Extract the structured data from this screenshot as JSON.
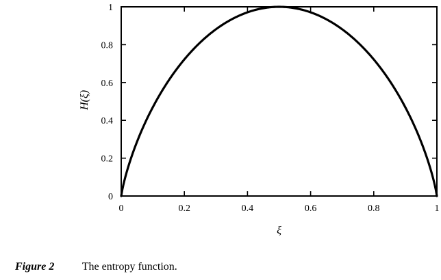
{
  "chart_data": {
    "type": "line",
    "xlabel": "ξ",
    "ylabel": "H(ξ)",
    "xlim": [
      0,
      1
    ],
    "ylim": [
      0,
      1
    ],
    "x_ticks": [
      "0",
      "0.2",
      "0.4",
      "0.6",
      "0.8",
      "1"
    ],
    "y_ticks": [
      "0",
      "0.2",
      "0.4",
      "0.6",
      "0.8",
      "1"
    ],
    "grid": false,
    "series": [
      {
        "x": [
          0,
          0.01,
          0.02,
          0.05,
          0.1,
          0.15,
          0.2,
          0.25,
          0.3,
          0.35,
          0.4,
          0.45,
          0.5,
          0.55,
          0.6,
          0.65,
          0.7,
          0.75,
          0.8,
          0.85,
          0.9,
          0.95,
          0.98,
          0.99,
          1
        ],
        "values": [
          0,
          0.081,
          0.141,
          0.286,
          0.469,
          0.61,
          0.722,
          0.811,
          0.881,
          0.934,
          0.971,
          0.993,
          1,
          0.993,
          0.971,
          0.934,
          0.881,
          0.811,
          0.722,
          0.61,
          0.469,
          0.286,
          0.141,
          0.081,
          0
        ],
        "color": "#000000"
      }
    ]
  },
  "caption": {
    "label": "Figure 2",
    "text": "The entropy function."
  }
}
